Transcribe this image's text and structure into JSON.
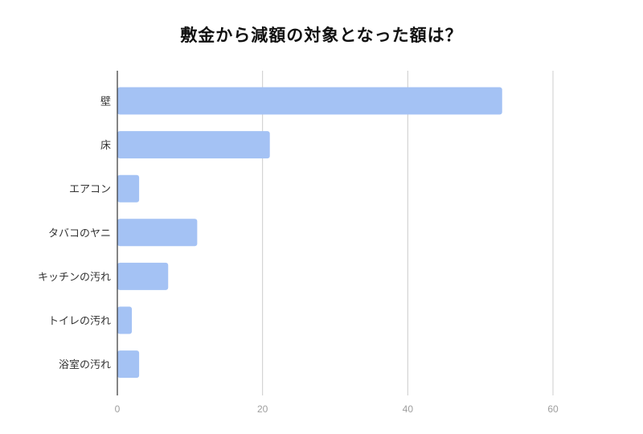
{
  "chart_data": {
    "type": "bar",
    "orientation": "horizontal",
    "title": "敷金から減額の対象となった額は？",
    "categories": [
      "壁",
      "床",
      "エアコン",
      "タバコのヤニ",
      "キッチンの汚れ",
      "トイレの汚れ",
      "浴室の汚れ"
    ],
    "values": [
      53,
      21,
      3,
      11,
      7,
      2,
      3
    ],
    "xlim": [
      0,
      60
    ],
    "xticks": [
      0,
      20,
      40,
      60
    ],
    "xlabel": "",
    "ylabel": "",
    "grid": true,
    "legend": "none",
    "bar_color": "#a4c2f4",
    "grid_color": "#cccccc",
    "axis_color": "#333333"
  }
}
